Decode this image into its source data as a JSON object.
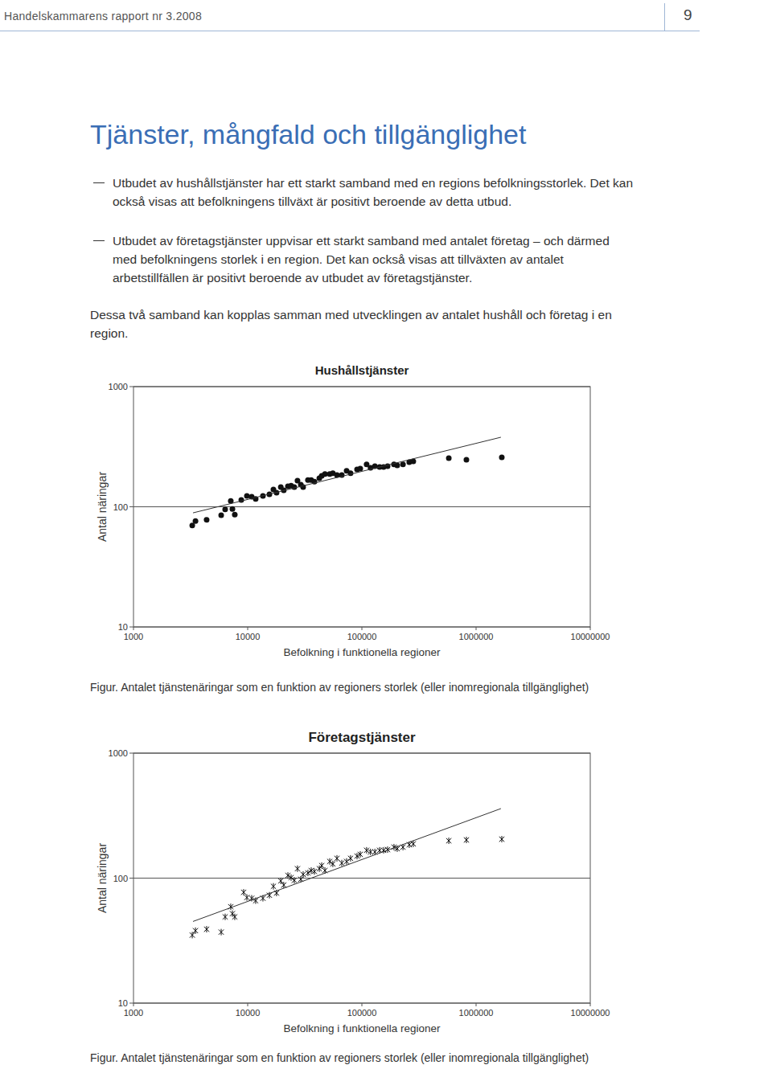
{
  "header": {
    "running_title": "Handelskammarens rapport nr 3.2008",
    "page_number": 9
  },
  "title": "Tjänster, mångfald och tillgänglighet",
  "bullets": [
    "Utbudet av hushållstjänster har ett starkt samband med en regions befolkningsstorlek. Det kan också visas att befolkningens tillväxt är positivt beroende av detta utbud.",
    "Utbudet av företagstjänster uppvisar ett starkt samband med antalet företag – och därmed med befolkningens storlek i en region. Det kan också visas att tillväxten av antalet arbetstillfällen är positivt beroende av utbudet av företagstjänster."
  ],
  "paragraph": "Dessa två samband kan kopplas samman med utvecklingen av antalet hushåll och företag i en region.",
  "captions": [
    "Figur. Antalet tjänstenäringar som en funktion av regioners storlek (eller inomregionala tillgänglighet)",
    "Figur. Antalet tjänstenäringar som en funktion av regioners storlek (eller inomregionala tillgänglighet)"
  ],
  "chart_data": [
    {
      "type": "scatter",
      "title": "Hushållstjänster",
      "x_label": "Befolkning i funktionella regioner",
      "y_label": "Antal näringar",
      "log": true,
      "grid": true,
      "xlim": [
        1000,
        10000000
      ],
      "ylim": [
        10,
        1000
      ],
      "xticks": [
        1000,
        10000,
        100000,
        1000000,
        10000000
      ],
      "yticks": [
        10,
        100,
        1000
      ],
      "series": [
        {
          "type": "scatter",
          "marker": "circle",
          "color": "#111111",
          "x": [
            3270,
            3490,
            4370,
            5860,
            6350,
            7110,
            7350,
            7710,
            8790,
            9840,
            10840,
            11750,
            13600,
            15500,
            16800,
            17900,
            19500,
            20700,
            22500,
            24000,
            25600,
            27300,
            29200,
            30600,
            33700,
            36000,
            38400,
            42400,
            44500,
            47500,
            52300,
            55700,
            60500,
            66700,
            73500,
            79600,
            90700,
            96800,
            110000,
            119000,
            130000,
            143000,
            155000,
            168000,
            191000,
            204000,
            229000,
            260000,
            282000,
            577000,
            823000,
            1680000
          ],
          "values": [
            70,
            76,
            78,
            85,
            95,
            112,
            96,
            86,
            114,
            123,
            121,
            116,
            123,
            127,
            139,
            131,
            146,
            137,
            148,
            150,
            146,
            165,
            153,
            146,
            167,
            167,
            162,
            173,
            181,
            187,
            187,
            190,
            184,
            184,
            199,
            190,
            205,
            208,
            225,
            211,
            218,
            214,
            214,
            218,
            225,
            221,
            225,
            235,
            239,
            254,
            246,
            258
          ]
        },
        {
          "type": "line",
          "line_style": "solid",
          "color": "#333333",
          "x": [
            3320,
            1650000
          ],
          "values": [
            89,
            379
          ]
        }
      ]
    },
    {
      "type": "scatter",
      "title": "Företagstjänster",
      "x_label": "Befolkning i funktionella regioner",
      "y_label": "Antal näringar",
      "log": true,
      "grid": true,
      "xlim": [
        1000,
        10000000
      ],
      "ylim": [
        10,
        1000
      ],
      "xticks": [
        1000,
        10000,
        100000,
        1000000,
        10000000
      ],
      "yticks": [
        10,
        100,
        1000
      ],
      "series": [
        {
          "type": "scatter",
          "marker": "cross",
          "color": "#111111",
          "x": [
            3270,
            3490,
            4370,
            5860,
            6350,
            7110,
            7350,
            7710,
            9220,
            9840,
            10840,
            11750,
            13600,
            15500,
            16800,
            17900,
            19500,
            20700,
            22500,
            24000,
            25600,
            27300,
            29200,
            30600,
            33700,
            36000,
            38400,
            42400,
            44500,
            47500,
            52300,
            55700,
            60500,
            66700,
            73500,
            79600,
            90700,
            96800,
            110000,
            119000,
            130000,
            143000,
            155000,
            168000,
            191000,
            204000,
            229000,
            260000,
            282000,
            577000,
            823000,
            1680000
          ],
          "values": [
            35,
            38,
            39,
            37,
            49,
            59,
            52,
            49,
            77,
            70,
            69,
            66,
            69,
            73,
            86,
            76,
            95,
            88,
            105,
            101,
            96,
            119,
            98,
            107,
            110,
            115,
            113,
            119,
            126,
            115,
            136,
            130,
            144,
            132,
            136,
            144,
            150,
            155,
            167,
            162,
            162,
            167,
            167,
            169,
            177,
            172,
            177,
            185,
            188,
            199,
            202,
            205
          ]
        },
        {
          "type": "line",
          "line_style": "solid",
          "color": "#333333",
          "x": [
            3320,
            1650000
          ],
          "values": [
            45,
            360
          ]
        }
      ]
    }
  ]
}
